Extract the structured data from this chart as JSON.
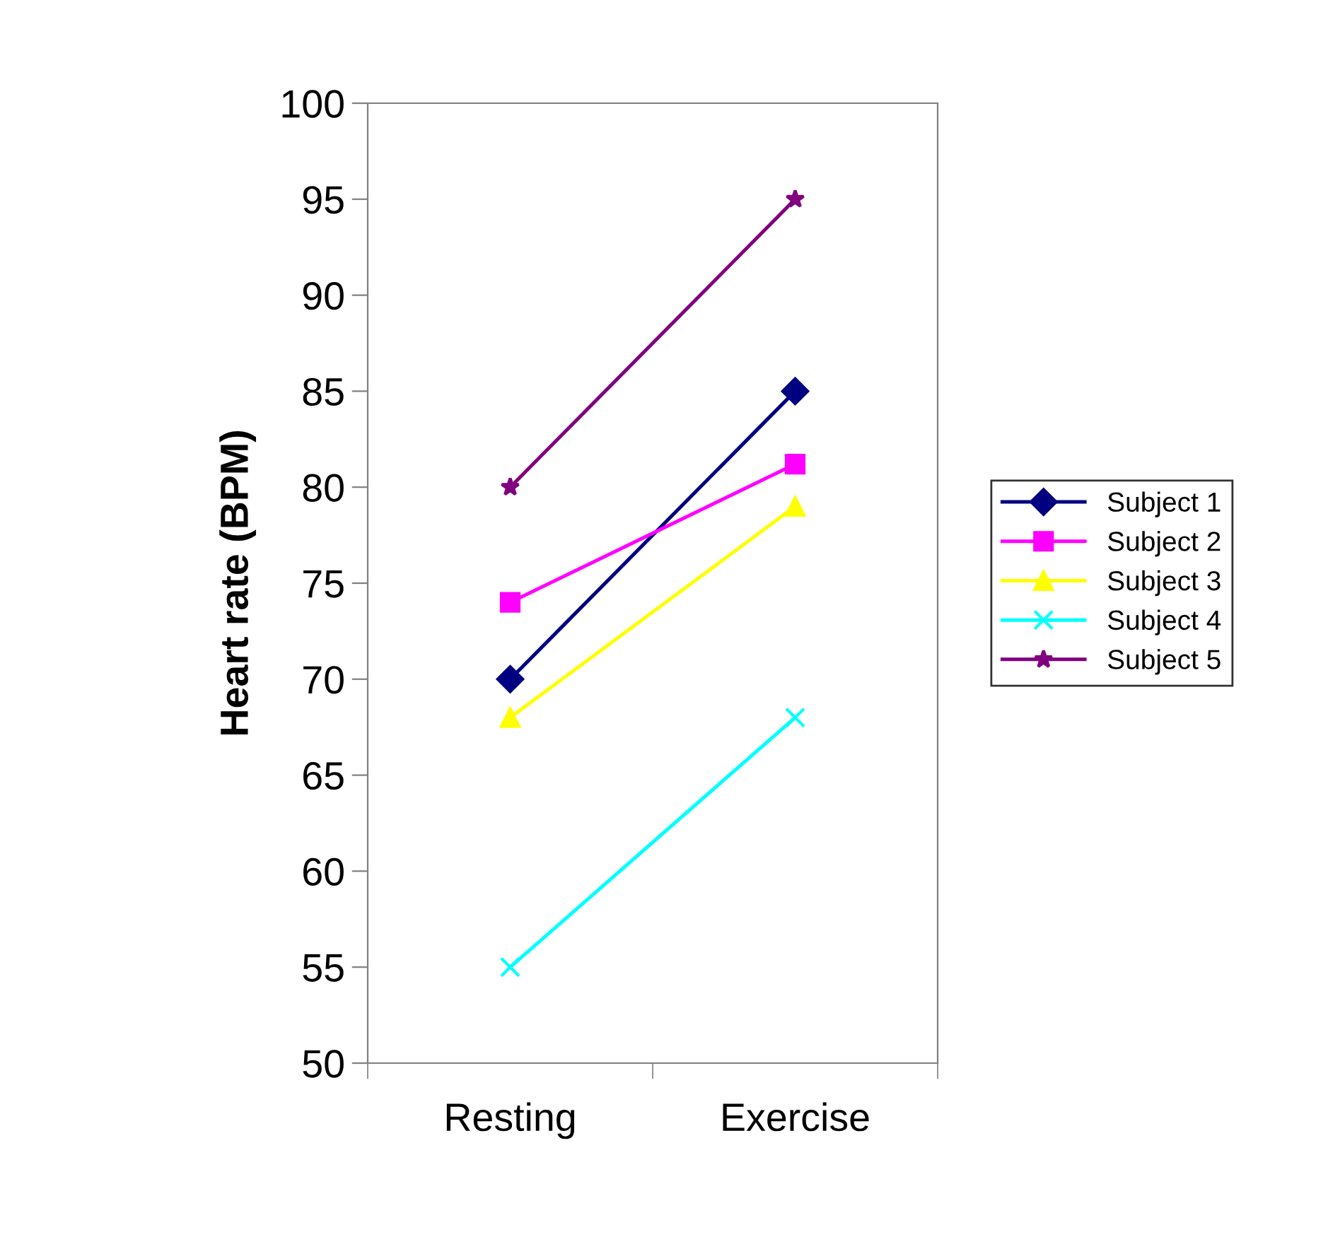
{
  "chart_data": {
    "type": "line",
    "ylabel": "Heart rate (BPM)",
    "categories": [
      "Resting",
      "Exercise"
    ],
    "series": [
      {
        "name": "Subject 1",
        "color": "#000080",
        "marker": "diamond",
        "values": [
          70,
          85
        ]
      },
      {
        "name": "Subject 2",
        "color": "#ff00ff",
        "marker": "square",
        "values": [
          74,
          81.2
        ]
      },
      {
        "name": "Subject 3",
        "color": "#ffff00",
        "marker": "triangle",
        "values": [
          68,
          79
        ]
      },
      {
        "name": "Subject 4",
        "color": "#00ffff",
        "marker": "cross",
        "values": [
          55,
          68
        ]
      },
      {
        "name": "Subject 5",
        "color": "#800080",
        "marker": "star",
        "values": [
          80,
          95
        ]
      }
    ],
    "ylim": [
      50,
      100
    ],
    "yticks": [
      50,
      55,
      60,
      65,
      70,
      75,
      80,
      85,
      90,
      95,
      100
    ],
    "grid": false,
    "legend": "right",
    "line_style": "solid"
  }
}
